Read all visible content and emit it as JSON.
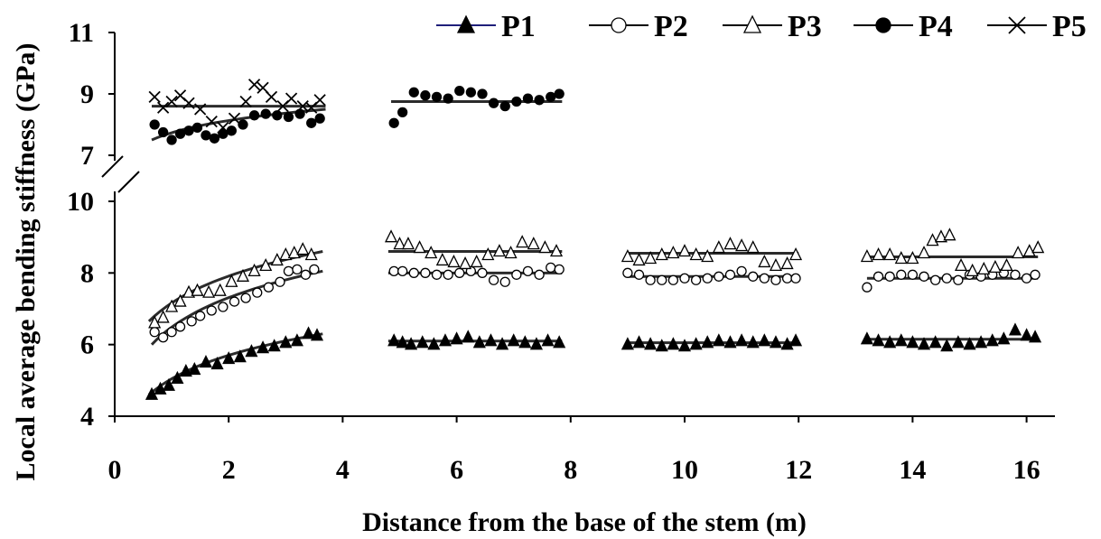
{
  "chart_data": {
    "type": "scatter",
    "xlabel": "Distance from the base of the stem (m)",
    "ylabel": "Local average bending stiffness (GPa)",
    "xlim": [
      0,
      17
    ],
    "xticks": [
      "0",
      "2",
      "4",
      "6",
      "8",
      "10",
      "12",
      "14",
      "16"
    ],
    "y_axis_break": true,
    "upper_panel": {
      "ylim": [
        7,
        11
      ],
      "yticks": [
        "7",
        "9",
        "11"
      ]
    },
    "lower_panel": {
      "ylim": [
        4,
        10
      ],
      "yticks": [
        "4",
        "6",
        "8",
        "10"
      ]
    },
    "legend_position": "top",
    "series": [
      {
        "name": "P1",
        "marker": "filled-triangle",
        "color": "#000000",
        "line_color": "#1f1f7a",
        "panel": "lower",
        "points": [
          [
            0.65,
            4.6
          ],
          [
            0.8,
            4.75
          ],
          [
            0.95,
            4.85
          ],
          [
            1.1,
            5.05
          ],
          [
            1.25,
            5.25
          ],
          [
            1.4,
            5.3
          ],
          [
            1.6,
            5.5
          ],
          [
            1.8,
            5.45
          ],
          [
            2.0,
            5.6
          ],
          [
            2.2,
            5.65
          ],
          [
            2.4,
            5.8
          ],
          [
            2.6,
            5.9
          ],
          [
            2.8,
            5.95
          ],
          [
            3.0,
            6.05
          ],
          [
            3.2,
            6.1
          ],
          [
            3.4,
            6.3
          ],
          [
            3.55,
            6.25
          ],
          [
            4.9,
            6.1
          ],
          [
            5.05,
            6.05
          ],
          [
            5.2,
            6.0
          ],
          [
            5.4,
            6.05
          ],
          [
            5.6,
            6.0
          ],
          [
            5.8,
            6.1
          ],
          [
            6.0,
            6.15
          ],
          [
            6.2,
            6.2
          ],
          [
            6.4,
            6.05
          ],
          [
            6.6,
            6.1
          ],
          [
            6.8,
            6.0
          ],
          [
            7.0,
            6.1
          ],
          [
            7.2,
            6.05
          ],
          [
            7.4,
            6.0
          ],
          [
            7.6,
            6.1
          ],
          [
            7.8,
            6.05
          ],
          [
            9.0,
            6.0
          ],
          [
            9.2,
            6.05
          ],
          [
            9.4,
            6.0
          ],
          [
            9.6,
            5.95
          ],
          [
            9.8,
            6.0
          ],
          [
            10.0,
            5.95
          ],
          [
            10.2,
            6.0
          ],
          [
            10.4,
            6.05
          ],
          [
            10.6,
            6.1
          ],
          [
            10.8,
            6.05
          ],
          [
            11.0,
            6.1
          ],
          [
            11.2,
            6.05
          ],
          [
            11.4,
            6.1
          ],
          [
            11.6,
            6.05
          ],
          [
            11.8,
            6.0
          ],
          [
            11.95,
            6.1
          ],
          [
            13.2,
            6.15
          ],
          [
            13.4,
            6.1
          ],
          [
            13.6,
            6.05
          ],
          [
            13.8,
            6.1
          ],
          [
            14.0,
            6.05
          ],
          [
            14.2,
            6.0
          ],
          [
            14.4,
            6.05
          ],
          [
            14.6,
            5.95
          ],
          [
            14.8,
            6.05
          ],
          [
            15.0,
            6.0
          ],
          [
            15.2,
            6.05
          ],
          [
            15.4,
            6.1
          ],
          [
            15.6,
            6.15
          ],
          [
            15.8,
            6.4
          ],
          [
            16.0,
            6.25
          ],
          [
            16.15,
            6.2
          ]
        ],
        "trend": [
          {
            "from": 0.6,
            "to": 3.65,
            "a": 4.6,
            "b": 6.3
          },
          {
            "from": 4.8,
            "to": 7.85,
            "y": 6.1
          },
          {
            "from": 9.0,
            "to": 12.0,
            "y": 6.05
          },
          {
            "from": 13.2,
            "to": 16.2,
            "y": 6.15
          }
        ]
      },
      {
        "name": "P2",
        "marker": "open-circle",
        "color": "#000000",
        "panel": "lower",
        "points": [
          [
            0.7,
            6.35
          ],
          [
            0.85,
            6.2
          ],
          [
            1.0,
            6.35
          ],
          [
            1.15,
            6.5
          ],
          [
            1.35,
            6.65
          ],
          [
            1.5,
            6.8
          ],
          [
            1.7,
            6.95
          ],
          [
            1.9,
            7.05
          ],
          [
            2.1,
            7.2
          ],
          [
            2.3,
            7.3
          ],
          [
            2.5,
            7.45
          ],
          [
            2.7,
            7.6
          ],
          [
            2.9,
            7.75
          ],
          [
            3.05,
            8.05
          ],
          [
            3.2,
            8.1
          ],
          [
            3.35,
            7.95
          ],
          [
            3.5,
            8.1
          ],
          [
            4.9,
            8.05
          ],
          [
            5.05,
            8.05
          ],
          [
            5.25,
            8.0
          ],
          [
            5.45,
            8.0
          ],
          [
            5.65,
            7.95
          ],
          [
            5.85,
            7.95
          ],
          [
            6.05,
            8.0
          ],
          [
            6.25,
            8.05
          ],
          [
            6.45,
            8.0
          ],
          [
            6.65,
            7.8
          ],
          [
            6.85,
            7.75
          ],
          [
            7.05,
            7.95
          ],
          [
            7.25,
            8.05
          ],
          [
            7.45,
            7.95
          ],
          [
            7.65,
            8.15
          ],
          [
            7.8,
            8.1
          ],
          [
            9.0,
            8.0
          ],
          [
            9.2,
            7.95
          ],
          [
            9.4,
            7.8
          ],
          [
            9.6,
            7.8
          ],
          [
            9.8,
            7.8
          ],
          [
            10.0,
            7.85
          ],
          [
            10.2,
            7.8
          ],
          [
            10.4,
            7.85
          ],
          [
            10.6,
            7.9
          ],
          [
            10.8,
            7.95
          ],
          [
            11.0,
            8.05
          ],
          [
            11.2,
            7.9
          ],
          [
            11.4,
            7.85
          ],
          [
            11.6,
            7.8
          ],
          [
            11.8,
            7.85
          ],
          [
            11.95,
            7.85
          ],
          [
            13.2,
            7.6
          ],
          [
            13.4,
            7.9
          ],
          [
            13.6,
            7.9
          ],
          [
            13.8,
            7.95
          ],
          [
            14.0,
            7.95
          ],
          [
            14.2,
            7.9
          ],
          [
            14.4,
            7.8
          ],
          [
            14.6,
            7.85
          ],
          [
            14.8,
            7.8
          ],
          [
            15.0,
            7.95
          ],
          [
            15.2,
            7.9
          ],
          [
            15.4,
            7.95
          ],
          [
            15.6,
            8.0
          ],
          [
            15.8,
            7.95
          ],
          [
            16.0,
            7.85
          ],
          [
            16.15,
            7.95
          ]
        ],
        "trend": [
          {
            "from": 0.65,
            "to": 3.65,
            "a": 6.0,
            "b": 8.05
          },
          {
            "from": 4.8,
            "to": 7.85,
            "y": 8.0
          },
          {
            "from": 9.0,
            "to": 12.0,
            "y": 7.9
          },
          {
            "from": 13.2,
            "to": 16.2,
            "y": 7.85
          }
        ]
      },
      {
        "name": "P3",
        "marker": "open-triangle",
        "color": "#000000",
        "panel": "lower",
        "points": [
          [
            0.7,
            6.6
          ],
          [
            0.85,
            6.75
          ],
          [
            1.0,
            7.05
          ],
          [
            1.15,
            7.2
          ],
          [
            1.3,
            7.45
          ],
          [
            1.45,
            7.5
          ],
          [
            1.65,
            7.45
          ],
          [
            1.85,
            7.5
          ],
          [
            2.05,
            7.75
          ],
          [
            2.25,
            7.9
          ],
          [
            2.45,
            8.05
          ],
          [
            2.65,
            8.2
          ],
          [
            2.85,
            8.35
          ],
          [
            3.0,
            8.5
          ],
          [
            3.15,
            8.55
          ],
          [
            3.3,
            8.65
          ],
          [
            3.45,
            8.5
          ],
          [
            4.85,
            9.0
          ],
          [
            5.0,
            8.8
          ],
          [
            5.15,
            8.8
          ],
          [
            5.35,
            8.7
          ],
          [
            5.55,
            8.55
          ],
          [
            5.75,
            8.35
          ],
          [
            5.95,
            8.3
          ],
          [
            6.15,
            8.25
          ],
          [
            6.35,
            8.3
          ],
          [
            6.55,
            8.5
          ],
          [
            6.75,
            8.6
          ],
          [
            6.95,
            8.55
          ],
          [
            7.15,
            8.85
          ],
          [
            7.35,
            8.8
          ],
          [
            7.55,
            8.7
          ],
          [
            7.75,
            8.6
          ],
          [
            9.0,
            8.45
          ],
          [
            9.2,
            8.35
          ],
          [
            9.4,
            8.4
          ],
          [
            9.6,
            8.5
          ],
          [
            9.8,
            8.55
          ],
          [
            10.0,
            8.6
          ],
          [
            10.2,
            8.5
          ],
          [
            10.4,
            8.45
          ],
          [
            10.6,
            8.7
          ],
          [
            10.8,
            8.8
          ],
          [
            11.0,
            8.75
          ],
          [
            11.2,
            8.7
          ],
          [
            11.4,
            8.3
          ],
          [
            11.6,
            8.2
          ],
          [
            11.8,
            8.25
          ],
          [
            11.95,
            8.5
          ],
          [
            13.2,
            8.45
          ],
          [
            13.4,
            8.5
          ],
          [
            13.6,
            8.5
          ],
          [
            13.8,
            8.4
          ],
          [
            14.0,
            8.4
          ],
          [
            14.2,
            8.55
          ],
          [
            14.35,
            8.9
          ],
          [
            14.5,
            9.0
          ],
          [
            14.65,
            9.05
          ],
          [
            14.85,
            8.2
          ],
          [
            15.05,
            8.05
          ],
          [
            15.25,
            8.1
          ],
          [
            15.45,
            8.15
          ],
          [
            15.65,
            8.2
          ],
          [
            15.85,
            8.55
          ],
          [
            16.05,
            8.6
          ],
          [
            16.2,
            8.7
          ]
        ],
        "trend": [
          {
            "from": 0.6,
            "to": 3.65,
            "a": 6.65,
            "b": 8.6
          },
          {
            "from": 4.8,
            "to": 7.85,
            "y": 8.6
          },
          {
            "from": 9.0,
            "to": 12.0,
            "y": 8.55
          },
          {
            "from": 13.2,
            "to": 16.2,
            "y": 8.45
          }
        ]
      },
      {
        "name": "P4",
        "marker": "filled-circle",
        "color": "#000000",
        "panel": "upper",
        "points": [
          [
            0.7,
            8.0
          ],
          [
            0.85,
            7.75
          ],
          [
            1.0,
            7.5
          ],
          [
            1.15,
            7.7
          ],
          [
            1.3,
            7.8
          ],
          [
            1.45,
            7.9
          ],
          [
            1.6,
            7.65
          ],
          [
            1.75,
            7.55
          ],
          [
            1.9,
            7.7
          ],
          [
            2.05,
            7.8
          ],
          [
            2.25,
            8.0
          ],
          [
            2.45,
            8.3
          ],
          [
            2.65,
            8.35
          ],
          [
            2.85,
            8.3
          ],
          [
            3.05,
            8.25
          ],
          [
            3.25,
            8.35
          ],
          [
            3.45,
            8.05
          ],
          [
            3.6,
            8.2
          ],
          [
            4.9,
            8.05
          ],
          [
            5.05,
            8.4
          ],
          [
            5.25,
            9.05
          ],
          [
            5.45,
            8.95
          ],
          [
            5.65,
            8.9
          ],
          [
            5.85,
            8.85
          ],
          [
            6.05,
            9.1
          ],
          [
            6.25,
            9.05
          ],
          [
            6.45,
            9.0
          ],
          [
            6.65,
            8.7
          ],
          [
            6.85,
            8.6
          ],
          [
            7.05,
            8.75
          ],
          [
            7.25,
            8.85
          ],
          [
            7.45,
            8.8
          ],
          [
            7.65,
            8.9
          ],
          [
            7.8,
            9.0
          ]
        ],
        "trend": [
          {
            "from": 0.65,
            "to": 3.7,
            "a": 7.5,
            "b": 8.5
          },
          {
            "from": 4.85,
            "to": 7.85,
            "y": 8.75
          }
        ]
      },
      {
        "name": "P5",
        "marker": "cross",
        "color": "#000000",
        "panel": "upper",
        "points": [
          [
            0.7,
            8.9
          ],
          [
            0.85,
            8.55
          ],
          [
            1.0,
            8.75
          ],
          [
            1.15,
            8.95
          ],
          [
            1.3,
            8.7
          ],
          [
            1.5,
            8.5
          ],
          [
            1.7,
            8.1
          ],
          [
            1.9,
            7.9
          ],
          [
            2.1,
            8.2
          ],
          [
            2.3,
            8.75
          ],
          [
            2.45,
            9.3
          ],
          [
            2.6,
            9.2
          ],
          [
            2.75,
            8.9
          ],
          [
            2.95,
            8.6
          ],
          [
            3.1,
            8.85
          ],
          [
            3.3,
            8.6
          ],
          [
            3.45,
            8.55
          ],
          [
            3.6,
            8.8
          ]
        ],
        "trend": [
          {
            "from": 0.65,
            "to": 3.7,
            "y": 8.6
          }
        ]
      }
    ]
  }
}
